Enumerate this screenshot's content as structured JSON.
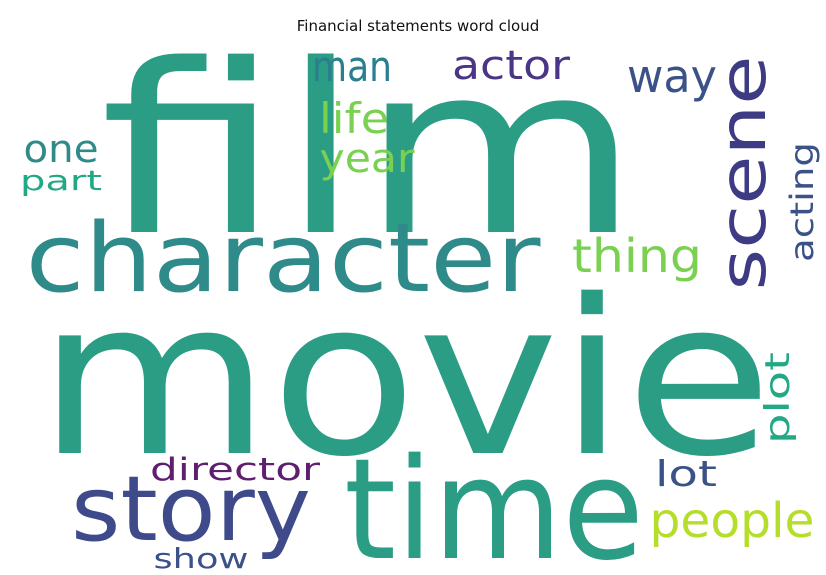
{
  "title": "Financial statements word cloud",
  "words": [
    {
      "text": "film",
      "color": "#2a9d84"
    },
    {
      "text": "movie",
      "color": "#2a9d84"
    },
    {
      "text": "character",
      "color": "#2f8a8a"
    },
    {
      "text": "time",
      "color": "#2a9d84"
    },
    {
      "text": "story",
      "color": "#3e4a8a"
    },
    {
      "text": "scene",
      "color": "#3e3b85"
    },
    {
      "text": "people",
      "color": "#b5de2b"
    },
    {
      "text": "thing",
      "color": "#7ad151"
    },
    {
      "text": "man",
      "color": "#2a7f8e"
    },
    {
      "text": "actor",
      "color": "#4a3586"
    },
    {
      "text": "way",
      "color": "#3b5289"
    },
    {
      "text": "life",
      "color": "#7ad151"
    },
    {
      "text": "year",
      "color": "#7ad151"
    },
    {
      "text": "one",
      "color": "#2f8a8a"
    },
    {
      "text": "part",
      "color": "#22a884"
    },
    {
      "text": "acting",
      "color": "#3b5289"
    },
    {
      "text": "plot",
      "color": "#22a884"
    },
    {
      "text": "director",
      "color": "#5d1f6e"
    },
    {
      "text": "lot",
      "color": "#3b5289"
    },
    {
      "text": "show",
      "color": "#3b5289"
    }
  ]
}
